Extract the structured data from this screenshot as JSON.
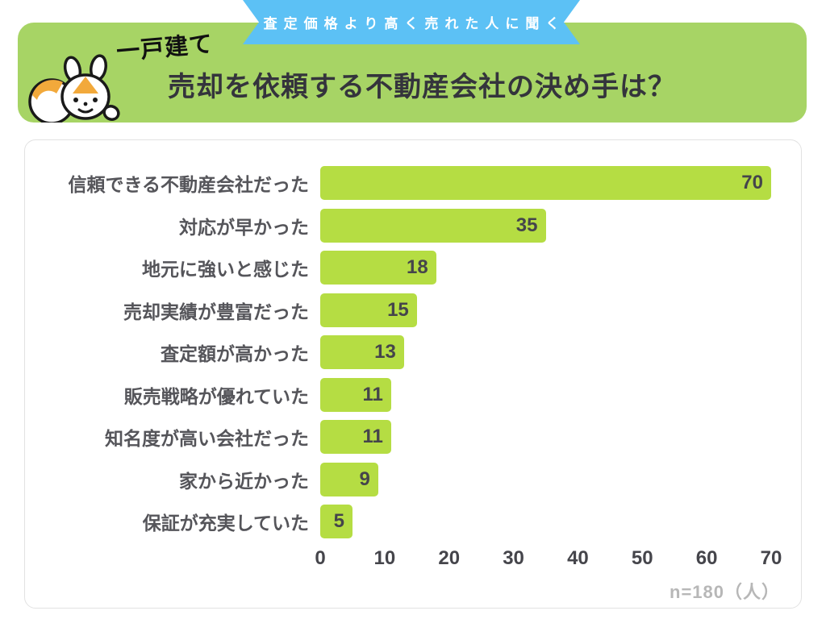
{
  "ribbon": {
    "label": "査定価格より高く売れた人に聞く",
    "color": "#5cc1f5"
  },
  "header": {
    "tag": "一戸建て",
    "title": "売却を依頼する不動産会社の決め手は？",
    "bg_color": "#a7d465",
    "mascot": "hamster-mascot",
    "mascot_accent_color": "#f2a93b"
  },
  "chart_data": {
    "type": "bar",
    "orientation": "horizontal",
    "title": "売却を依頼する不動産会社の決め手は？",
    "categories": [
      "信頼できる不動産会社だった",
      "対応が早かった",
      "地元に強いと感じた",
      "売却実績が豊富だった",
      "査定額が高かった",
      "販売戦略が優れていた",
      "知名度が高い会社だった",
      "家から近かった",
      "保証が充実していた"
    ],
    "values": [
      70,
      35,
      18,
      15,
      13,
      11,
      11,
      9,
      5
    ],
    "x_ticks": [
      0,
      10,
      20,
      30,
      40,
      50,
      60,
      70
    ],
    "xlim": [
      0,
      70
    ],
    "grid": false,
    "legend": "none",
    "bar_color": "#b5dd43",
    "value_label_color": "#45454b",
    "sample_note": "n=180（人）"
  }
}
